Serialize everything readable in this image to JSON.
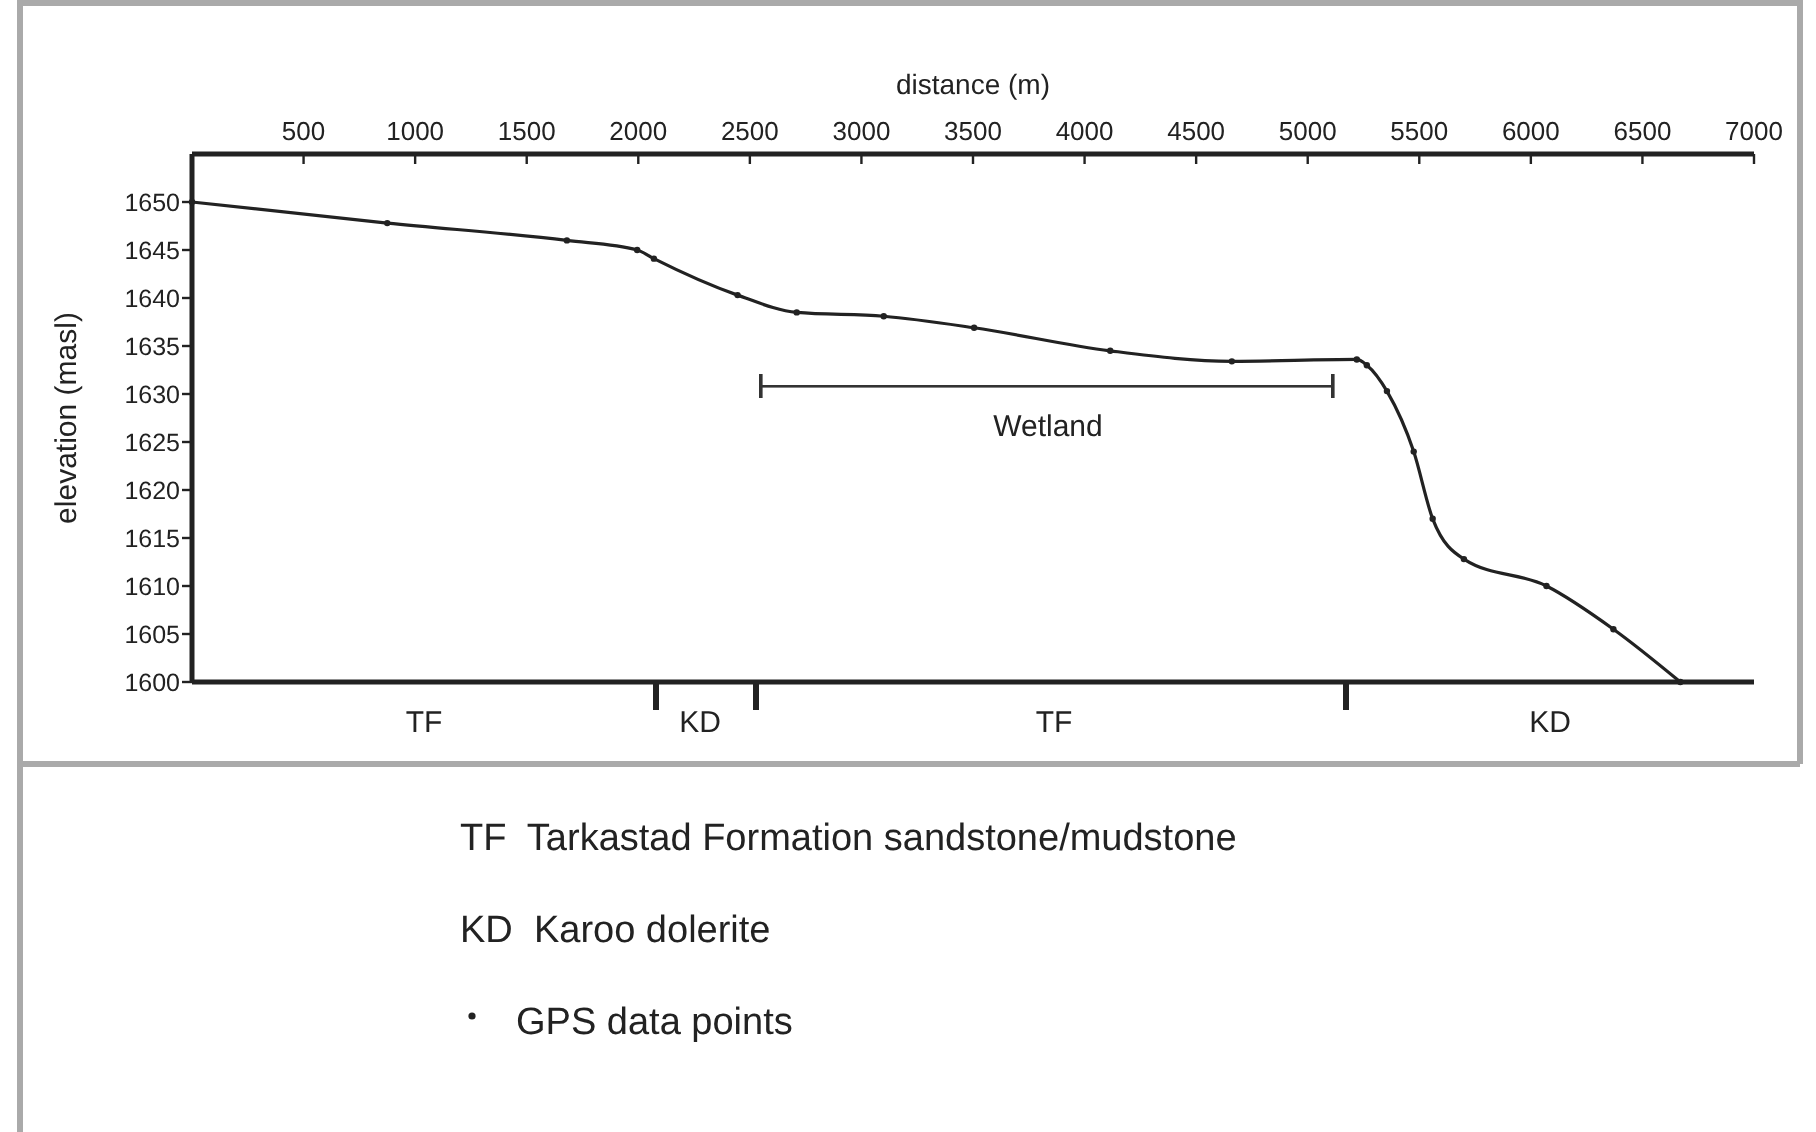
{
  "chart_data": {
    "type": "line",
    "xlabel": "distance (m)",
    "ylabel": "elevation (masl)",
    "xlim": [
      0,
      7000
    ],
    "xticks": [
      500,
      1000,
      1500,
      2000,
      2500,
      3000,
      3500,
      4000,
      4500,
      5000,
      5500,
      6000,
      6500,
      7000
    ],
    "ylim": [
      1600,
      1655
    ],
    "yticks": [
      1600,
      1605,
      1610,
      1615,
      1620,
      1625,
      1630,
      1635,
      1640,
      1645,
      1650
    ],
    "x": [
      0,
      875,
      1680,
      1995,
      2070,
      2445,
      2710,
      3100,
      3505,
      4115,
      4660,
      5220,
      5265,
      5355,
      5475,
      5560,
      5700,
      6070,
      6370,
      6670
    ],
    "series": [
      {
        "name": "GPS data points",
        "color": "#222222",
        "values": [
          1650,
          1647.8,
          1646,
          1645,
          1644.1,
          1640.3,
          1638.5,
          1638.1,
          1636.9,
          1634.5,
          1633.4,
          1633.6,
          1633,
          1630.3,
          1624,
          1617,
          1612.8,
          1610,
          1605.5,
          1600
        ]
      }
    ],
    "marker": "circle",
    "legend": "bottom",
    "annotations": [
      "TF",
      "KD",
      "TF",
      "KD",
      "Wetland",
      "TF  Tarkastad Formation sandstone/mudstone",
      "KD  Karoo dolerite"
    ]
  }
}
